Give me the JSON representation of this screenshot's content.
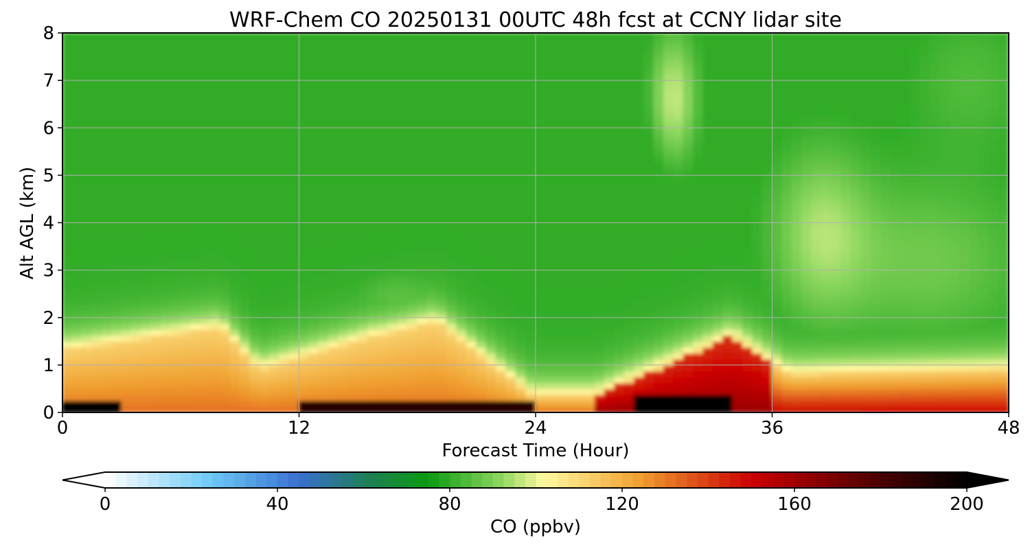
{
  "chart_data": {
    "type": "heatmap",
    "title": "WRF-Chem CO  20250131 00UTC 48h fcst at CCNY lidar site",
    "xlabel": "Forecast Time (Hour)",
    "ylabel": "Alt AGL (km)",
    "xlim": [
      0,
      48
    ],
    "ylim": [
      0,
      8
    ],
    "xticks": [
      0,
      12,
      24,
      36,
      48
    ],
    "yticks": [
      0,
      1,
      2,
      3,
      4,
      5,
      6,
      7,
      8
    ],
    "grid": true,
    "x": [
      0,
      3,
      6,
      8,
      9,
      10,
      12,
      14,
      16,
      18,
      20,
      22,
      23,
      24,
      26,
      28,
      30,
      31,
      32,
      33,
      34,
      35,
      36,
      37,
      38,
      40,
      42,
      44,
      46,
      48
    ],
    "y": [
      0,
      0.15,
      0.3,
      0.5,
      0.75,
      1.0,
      1.25,
      1.5,
      1.75,
      2.0,
      2.5,
      3.0,
      3.5,
      4.0,
      4.5,
      5.0,
      5.5,
      6.0,
      6.5,
      7.0,
      7.5,
      8.0
    ],
    "series": [
      {
        "name": "",
        "values_description_units": "ppbv"
      }
    ],
    "colorbar": {
      "label": "CO  (ppbv)",
      "min": 0,
      "max": 200,
      "ticks": [
        0,
        40,
        80,
        120,
        160,
        200
      ],
      "extend": "both",
      "colors": [
        "#ffffff",
        "#6ac8f5",
        "#3a6fd0",
        "#1c8050",
        "#0a9a10",
        "#8fd860",
        "#fff9a0",
        "#f0a030",
        "#cc0000",
        "#4a0000",
        "#000000"
      ]
    }
  }
}
